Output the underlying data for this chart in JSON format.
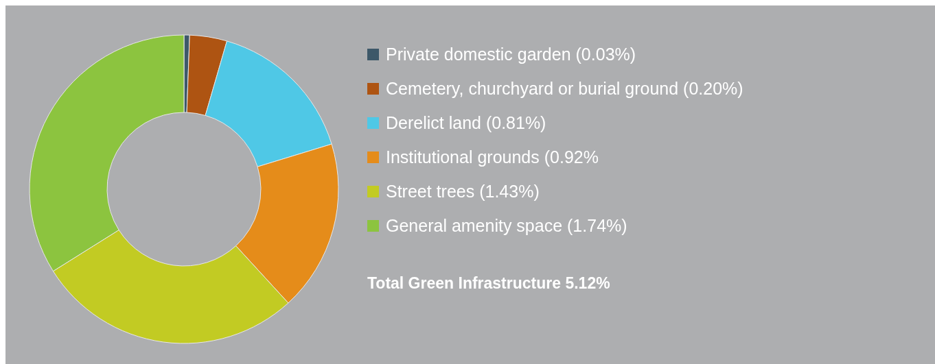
{
  "chart_data": {
    "type": "donut",
    "categories": [
      "Private domestic garden",
      "Cemetery, churchyard or burial ground",
      "Derelict land",
      "Institutional grounds",
      "Street trees",
      "General amenity space"
    ],
    "values": [
      0.03,
      0.2,
      0.81,
      0.92,
      1.43,
      1.74
    ],
    "value_labels": [
      "(0.03%)",
      "(0.20%)",
      "(0.81%)",
      "(0.92%",
      "(1.43%)",
      "(1.74%)"
    ],
    "colors": [
      "#3d5869",
      "#ae5412",
      "#4fc8e6",
      "#e58c1a",
      "#c2cb23",
      "#8cc43f"
    ],
    "legend": "right",
    "annotations": [
      "Total Green Infrastructure 5.12%"
    ]
  }
}
